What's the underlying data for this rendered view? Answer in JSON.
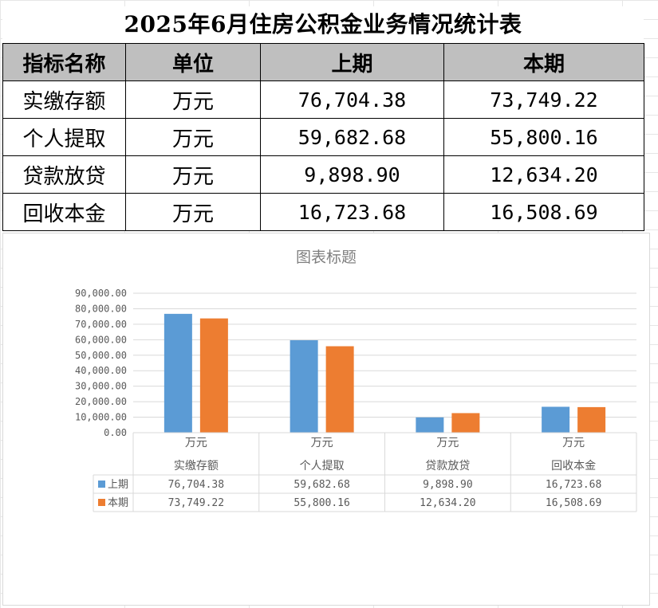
{
  "table": {
    "title": "2025年6月住房公积金业务情况统计表",
    "headers": [
      "指标名称",
      "单位",
      "上期",
      "本期"
    ],
    "rows": [
      {
        "name": "实缴存额",
        "unit": "万元",
        "prev": "76,704.38",
        "curr": "73,749.22"
      },
      {
        "name": "个人提取",
        "unit": "万元",
        "prev": "59,682.68",
        "curr": "55,800.16"
      },
      {
        "name": "贷款放贷",
        "unit": "万元",
        "prev": "9,898.90",
        "curr": "12,634.20"
      },
      {
        "name": "回收本金",
        "unit": "万元",
        "prev": "16,723.68",
        "curr": "16,508.69"
      }
    ]
  },
  "chart_data": {
    "type": "bar",
    "title": "图表标题",
    "categories": [
      "实缴存额",
      "个人提取",
      "贷款放贷",
      "回收本金"
    ],
    "category_units": [
      "万元",
      "万元",
      "万元",
      "万元"
    ],
    "series": [
      {
        "name": "上期",
        "color": "#5b9bd5",
        "values": [
          76704.38,
          59682.68,
          9898.9,
          16723.68
        ],
        "labels": [
          "76,704.38",
          "59,682.68",
          "9,898.90",
          "16,723.68"
        ]
      },
      {
        "name": "本期",
        "color": "#ed7d31",
        "values": [
          73749.22,
          55800.16,
          12634.2,
          16508.69
        ],
        "labels": [
          "73,749.22",
          "55,800.16",
          "12,634.20",
          "16,508.69"
        ]
      }
    ],
    "ylim": [
      0,
      90000
    ],
    "y_ticks": [
      0,
      10000,
      20000,
      30000,
      40000,
      50000,
      60000,
      70000,
      80000,
      90000
    ],
    "y_tick_labels": [
      "0.00",
      "10,000.00",
      "20,000.00",
      "30,000.00",
      "40,000.00",
      "50,000.00",
      "60,000.00",
      "70,000.00",
      "80,000.00",
      "90,000.00"
    ],
    "grid": true,
    "legend": "data-table"
  }
}
